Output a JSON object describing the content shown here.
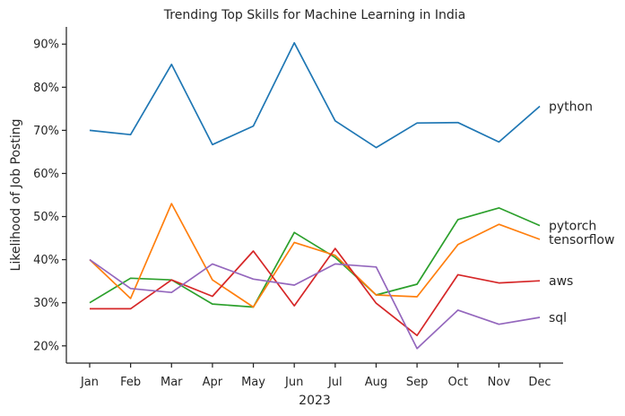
{
  "chart_data": {
    "type": "line",
    "title": "Trending Top Skills for Machine Learning in India",
    "xlabel": "2023",
    "ylabel": "Likelihood of Job Posting",
    "x": [
      "Jan",
      "Feb",
      "Mar",
      "Apr",
      "May",
      "Jun",
      "Jul",
      "Aug",
      "Sep",
      "Oct",
      "Nov",
      "Dec"
    ],
    "yticks": [
      20,
      30,
      40,
      50,
      60,
      70,
      80,
      90
    ],
    "ytick_labels": [
      "20%",
      "30%",
      "40%",
      "50%",
      "60%",
      "70%",
      "80%",
      "90%"
    ],
    "ylim": [
      16,
      94
    ],
    "grid": false,
    "legend": "end-of-line labels",
    "series": [
      {
        "name": "python",
        "color": "#1f77b4",
        "values": [
          70.0,
          69.0,
          85.3,
          66.7,
          71.0,
          90.3,
          72.2,
          66.0,
          71.7,
          71.8,
          67.3,
          75.6
        ]
      },
      {
        "name": "pytorch",
        "color": "#2ca02c",
        "values": [
          30.0,
          35.7,
          35.3,
          29.7,
          29.0,
          46.3,
          40.5,
          31.8,
          34.3,
          49.3,
          52.0,
          47.9
        ]
      },
      {
        "name": "tensorflow",
        "color": "#ff7f0e",
        "values": [
          40.0,
          31.0,
          53.0,
          35.3,
          29.0,
          44.0,
          41.0,
          31.8,
          31.4,
          43.5,
          48.2,
          44.7
        ]
      },
      {
        "name": "aws",
        "color": "#d62728",
        "values": [
          28.6,
          28.6,
          35.3,
          31.5,
          42.0,
          29.3,
          42.6,
          29.9,
          22.4,
          36.5,
          34.6,
          35.1
        ]
      },
      {
        "name": "sql",
        "color": "#9467bd",
        "values": [
          40.0,
          33.3,
          32.4,
          39.0,
          35.5,
          34.1,
          39.0,
          38.3,
          19.4,
          28.3,
          25.0,
          26.6
        ]
      }
    ]
  }
}
